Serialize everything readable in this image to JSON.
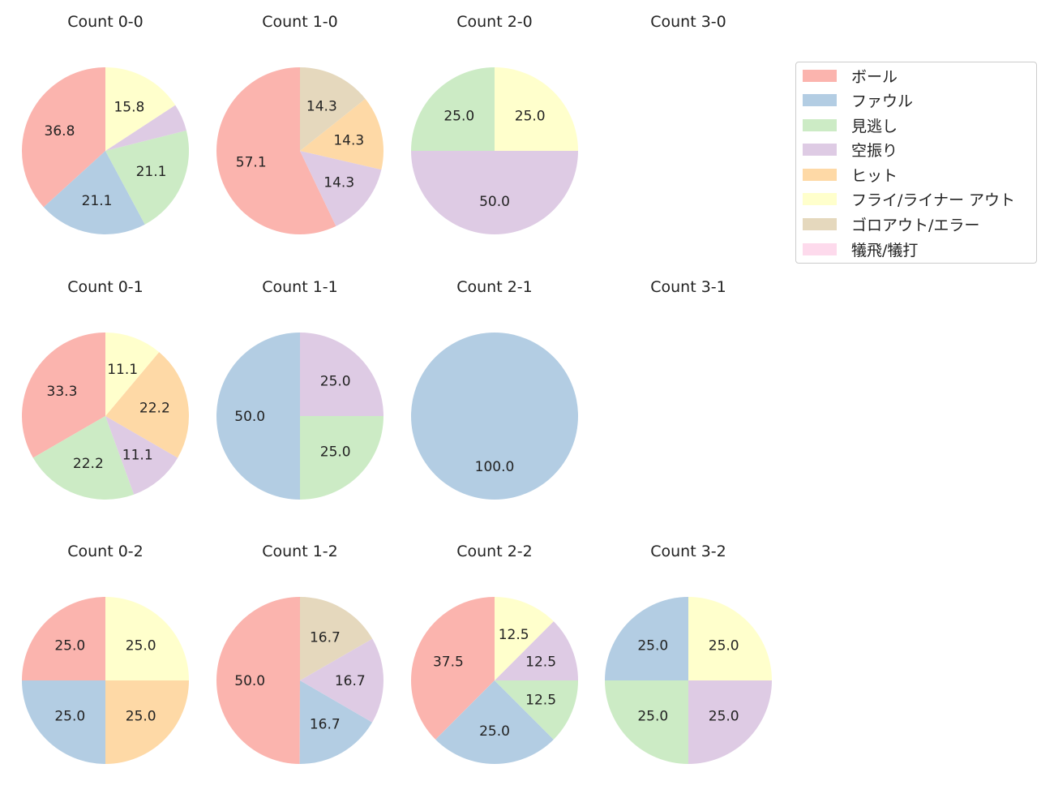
{
  "chart_data": {
    "type": "pie",
    "legend": {
      "position": "upper right",
      "entries": [
        {
          "key": "ball",
          "label": "ボール",
          "color": "#fbb4ae"
        },
        {
          "key": "foul",
          "label": "ファウル",
          "color": "#b3cde3"
        },
        {
          "key": "looking",
          "label": "見逃し",
          "color": "#ccebc5"
        },
        {
          "key": "swinging",
          "label": "空振り",
          "color": "#decbe4"
        },
        {
          "key": "hit",
          "label": "ヒット",
          "color": "#fed9a6"
        },
        {
          "key": "fly_liner_out",
          "label": "フライ/ライナー アウト",
          "color": "#ffffcc"
        },
        {
          "key": "grounder_out_error",
          "label": "ゴロアウト/エラー",
          "color": "#e5d8bd"
        },
        {
          "key": "sacrifice",
          "label": "犠飛/犠打",
          "color": "#fddaec"
        }
      ]
    },
    "charts": [
      {
        "title": "Count 0-0",
        "row": 0,
        "col": 0,
        "slices": [
          {
            "key": "ball",
            "value": 36.8,
            "label": "36.8"
          },
          {
            "key": "foul",
            "value": 21.1,
            "label": "21.1"
          },
          {
            "key": "looking",
            "value": 21.1,
            "label": "21.1"
          },
          {
            "key": "swinging",
            "value": 5.3,
            "label": ""
          },
          {
            "key": "fly_liner_out",
            "value": 15.8,
            "label": "15.8"
          }
        ]
      },
      {
        "title": "Count 1-0",
        "row": 0,
        "col": 1,
        "slices": [
          {
            "key": "ball",
            "value": 57.1,
            "label": "57.1"
          },
          {
            "key": "swinging",
            "value": 14.3,
            "label": "14.3"
          },
          {
            "key": "hit",
            "value": 14.3,
            "label": "14.3"
          },
          {
            "key": "grounder_out_error",
            "value": 14.3,
            "label": "14.3"
          }
        ]
      },
      {
        "title": "Count 2-0",
        "row": 0,
        "col": 2,
        "slices": [
          {
            "key": "looking",
            "value": 25.0,
            "label": "25.0"
          },
          {
            "key": "swinging",
            "value": 50.0,
            "label": "50.0"
          },
          {
            "key": "fly_liner_out",
            "value": 25.0,
            "label": "25.0"
          }
        ]
      },
      {
        "title": "Count 3-0",
        "row": 0,
        "col": 3,
        "slices": []
      },
      {
        "title": "Count 0-1",
        "row": 1,
        "col": 0,
        "slices": [
          {
            "key": "ball",
            "value": 33.3,
            "label": "33.3"
          },
          {
            "key": "looking",
            "value": 22.2,
            "label": "22.2"
          },
          {
            "key": "swinging",
            "value": 11.1,
            "label": "11.1"
          },
          {
            "key": "hit",
            "value": 22.2,
            "label": "22.2"
          },
          {
            "key": "fly_liner_out",
            "value": 11.1,
            "label": "11.1"
          }
        ]
      },
      {
        "title": "Count 1-1",
        "row": 1,
        "col": 1,
        "slices": [
          {
            "key": "foul",
            "value": 50.0,
            "label": "50.0"
          },
          {
            "key": "looking",
            "value": 25.0,
            "label": "25.0"
          },
          {
            "key": "swinging",
            "value": 25.0,
            "label": "25.0"
          }
        ]
      },
      {
        "title": "Count 2-1",
        "row": 1,
        "col": 2,
        "slices": [
          {
            "key": "foul",
            "value": 100.0,
            "label": "100.0"
          }
        ]
      },
      {
        "title": "Count 3-1",
        "row": 1,
        "col": 3,
        "slices": []
      },
      {
        "title": "Count 0-2",
        "row": 2,
        "col": 0,
        "slices": [
          {
            "key": "ball",
            "value": 25.0,
            "label": "25.0"
          },
          {
            "key": "foul",
            "value": 25.0,
            "label": "25.0"
          },
          {
            "key": "hit",
            "value": 25.0,
            "label": "25.0"
          },
          {
            "key": "fly_liner_out",
            "value": 25.0,
            "label": "25.0"
          }
        ]
      },
      {
        "title": "Count 1-2",
        "row": 2,
        "col": 1,
        "slices": [
          {
            "key": "ball",
            "value": 50.0,
            "label": "50.0"
          },
          {
            "key": "foul",
            "value": 16.7,
            "label": "16.7"
          },
          {
            "key": "swinging",
            "value": 16.7,
            "label": "16.7"
          },
          {
            "key": "grounder_out_error",
            "value": 16.7,
            "label": "16.7"
          }
        ]
      },
      {
        "title": "Count 2-2",
        "row": 2,
        "col": 2,
        "slices": [
          {
            "key": "ball",
            "value": 37.5,
            "label": "37.5"
          },
          {
            "key": "foul",
            "value": 25.0,
            "label": "25.0"
          },
          {
            "key": "looking",
            "value": 12.5,
            "label": "12.5"
          },
          {
            "key": "swinging",
            "value": 12.5,
            "label": "12.5"
          },
          {
            "key": "fly_liner_out",
            "value": 12.5,
            "label": "12.5"
          }
        ]
      },
      {
        "title": "Count 3-2",
        "row": 2,
        "col": 3,
        "slices": [
          {
            "key": "foul",
            "value": 25.0,
            "label": "25.0"
          },
          {
            "key": "looking",
            "value": 25.0,
            "label": "25.0"
          },
          {
            "key": "swinging",
            "value": 25.0,
            "label": "25.0"
          },
          {
            "key": "fly_liner_out",
            "value": 25.0,
            "label": "25.0"
          }
        ]
      }
    ]
  }
}
